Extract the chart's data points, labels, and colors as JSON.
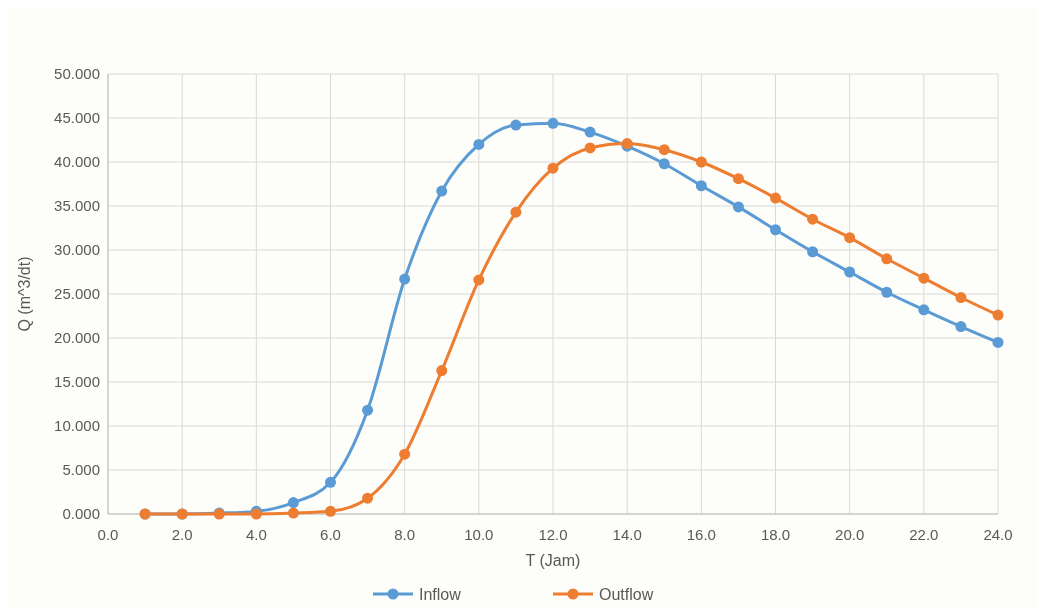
{
  "chart_data": {
    "type": "line",
    "xlabel": "T (Jam)",
    "ylabel": "Q (m^3/dt)",
    "x": [
      1,
      2,
      3,
      4,
      5,
      6,
      7,
      8,
      9,
      10,
      11,
      12,
      13,
      14,
      15,
      16,
      17,
      18,
      19,
      20,
      21,
      22,
      23,
      24
    ],
    "series": [
      {
        "name": "Inflow",
        "color": "#5b9bd5",
        "values": [
          0,
          0,
          0.1,
          0.3,
          1.3,
          3.6,
          11.8,
          26.7,
          36.7,
          42.0,
          44.2,
          44.4,
          43.4,
          41.8,
          39.8,
          37.3,
          34.9,
          32.3,
          29.8,
          27.5,
          25.2,
          23.2,
          21.3,
          19.5
        ]
      },
      {
        "name": "Outflow",
        "color": "#ed7d31",
        "values": [
          0,
          0,
          0,
          0,
          0.1,
          0.3,
          1.8,
          6.8,
          16.3,
          26.6,
          34.3,
          39.3,
          41.6,
          42.1,
          41.4,
          40.0,
          38.1,
          35.9,
          33.5,
          31.4,
          29.0,
          26.8,
          24.6,
          22.6
        ]
      }
    ],
    "xlim": [
      0,
      24
    ],
    "xticks": [
      {
        "value": 0,
        "label": "0.0"
      },
      {
        "value": 2,
        "label": "2.0"
      },
      {
        "value": 4,
        "label": "4.0"
      },
      {
        "value": 6,
        "label": "6.0"
      },
      {
        "value": 8,
        "label": "8.0"
      },
      {
        "value": 10,
        "label": "10.0"
      },
      {
        "value": 12,
        "label": "12.0"
      },
      {
        "value": 14,
        "label": "14.0"
      },
      {
        "value": 16,
        "label": "16.0"
      },
      {
        "value": 18,
        "label": "18.0"
      },
      {
        "value": 20,
        "label": "20.0"
      },
      {
        "value": 22,
        "label": "22.0"
      },
      {
        "value": 24,
        "label": "24.0"
      }
    ],
    "ylim": [
      0,
      50
    ],
    "yticks": [
      {
        "value": 0,
        "label": "0.000"
      },
      {
        "value": 5,
        "label": "5.000"
      },
      {
        "value": 10,
        "label": "10.000"
      },
      {
        "value": 15,
        "label": "15.000"
      },
      {
        "value": 20,
        "label": "20.000"
      },
      {
        "value": 25,
        "label": "25.000"
      },
      {
        "value": 30,
        "label": "30.000"
      },
      {
        "value": 35,
        "label": "35.000"
      },
      {
        "value": 40,
        "label": "40.000"
      },
      {
        "value": 45,
        "label": "45.000"
      },
      {
        "value": 50,
        "label": "50.000"
      }
    ],
    "grid": true,
    "legend": "bottom",
    "marker": "circle",
    "line_style": "solid"
  }
}
